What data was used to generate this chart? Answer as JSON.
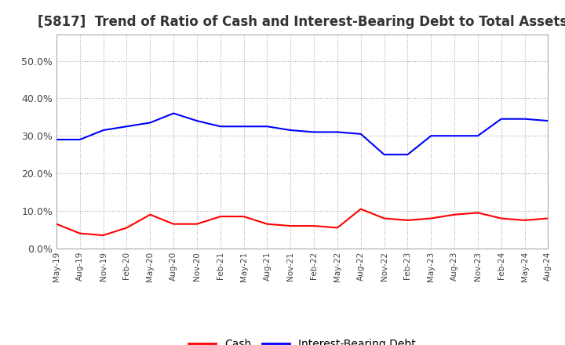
{
  "title": "[5817]  Trend of Ratio of Cash and Interest-Bearing Debt to Total Assets",
  "x_labels": [
    "May-19",
    "Aug-19",
    "Nov-19",
    "Feb-20",
    "May-20",
    "Aug-20",
    "Nov-20",
    "Feb-21",
    "May-21",
    "Aug-21",
    "Nov-21",
    "Feb-22",
    "May-22",
    "Aug-22",
    "Nov-22",
    "Feb-23",
    "May-23",
    "Aug-23",
    "Nov-23",
    "Feb-24",
    "May-24",
    "Aug-24"
  ],
  "cash": [
    6.5,
    4.0,
    3.5,
    5.5,
    9.0,
    6.5,
    6.5,
    8.5,
    8.5,
    6.5,
    6.0,
    6.0,
    5.5,
    10.5,
    8.0,
    7.5,
    8.0,
    9.0,
    9.5,
    8.0,
    7.5,
    8.0
  ],
  "interest_bearing_debt": [
    29.0,
    29.0,
    31.5,
    32.5,
    33.5,
    36.0,
    34.0,
    32.5,
    32.5,
    32.5,
    31.5,
    31.0,
    31.0,
    30.5,
    25.0,
    25.0,
    30.0,
    30.0,
    30.0,
    34.5,
    34.5,
    34.0
  ],
  "cash_color": "#ff0000",
  "debt_color": "#0000ff",
  "ylim": [
    0,
    57
  ],
  "yticks": [
    0.0,
    10.0,
    20.0,
    30.0,
    40.0,
    50.0
  ],
  "background_color": "#ffffff",
  "plot_bg_color": "#ffffff",
  "grid_color": "#aaaaaa",
  "title_fontsize": 12,
  "legend_labels": [
    "Cash",
    "Interest-Bearing Debt"
  ]
}
